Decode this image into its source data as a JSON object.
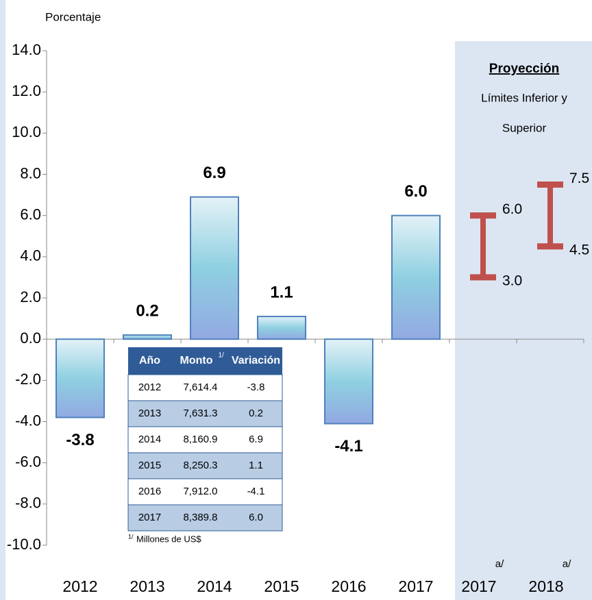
{
  "chart_data": {
    "type": "bar",
    "y_label": "Porcentaje",
    "categories": [
      "2012",
      "2013",
      "2014",
      "2015",
      "2016",
      "2017"
    ],
    "values": [
      -3.8,
      0.2,
      6.9,
      1.1,
      -4.1,
      6.0
    ],
    "value_labels": [
      "-3.8",
      "0.2",
      "6.9",
      "1.1",
      "-4.1",
      "6.0"
    ],
    "color": "#4f81bd",
    "ylim": [
      -10,
      14
    ],
    "yticks": [
      {
        "value": -10,
        "label": "-10.0"
      },
      {
        "value": -8,
        "label": "-8.0"
      },
      {
        "value": -6,
        "label": "-6.0"
      },
      {
        "value": -4,
        "label": "-4.0"
      },
      {
        "value": -2,
        "label": "-2.0"
      },
      {
        "value": 0,
        "label": "0.0"
      },
      {
        "value": 2,
        "label": "2.0"
      },
      {
        "value": 4,
        "label": "4.0"
      },
      {
        "value": 6,
        "label": "6.0"
      },
      {
        "value": 8,
        "label": "8.0"
      },
      {
        "value": 10,
        "label": "10.0"
      },
      {
        "value": 12,
        "label": "12.0"
      },
      {
        "value": 14,
        "label": "14.0"
      }
    ],
    "projection": {
      "title": "Proyección",
      "subtitle": [
        "Límites Inferior y",
        "Superior"
      ],
      "categories": [
        "2017",
        "2018"
      ],
      "notes": [
        "a/",
        "a/"
      ],
      "low": [
        3.0,
        4.5
      ],
      "high": [
        6.0,
        7.5
      ],
      "low_labels": [
        "3.0",
        "4.5"
      ],
      "high_labels": [
        "6.0",
        "7.5"
      ],
      "color": "#c0504d"
    },
    "table": {
      "columns": [
        "Año",
        "Monto",
        "Variación"
      ],
      "footnote_mark": "1/",
      "rows": [
        [
          "2012",
          "7,614.4",
          "-3.8"
        ],
        [
          "2013",
          "7,631.3",
          "0.2"
        ],
        [
          "2014",
          "8,160.9",
          "6.9"
        ],
        [
          "2015",
          "8,250.3",
          "1.1"
        ],
        [
          "2016",
          "7,912.0",
          "-4.1"
        ],
        [
          "2017",
          "8,389.8",
          "6.0"
        ]
      ],
      "note": "Millones de US$"
    }
  }
}
